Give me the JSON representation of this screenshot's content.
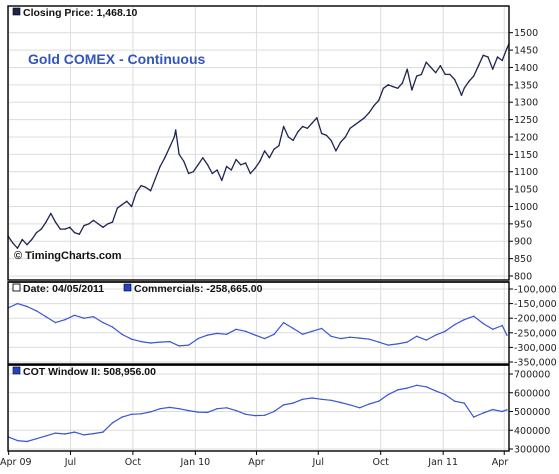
{
  "colors": {
    "price_line": "#1f2552",
    "indicator_line": "#3a55d6",
    "grid": "#dcdcdc",
    "frame": "#000000",
    "title": "#3355bb",
    "legend_dark": "#1f2552",
    "legend_blue": "#2244cc"
  },
  "chart_data": [
    {
      "type": "line",
      "panel": "price",
      "legend": "Closing Price: 1,468.10",
      "legend_icon": "filled-dark-square-icon",
      "title": "Gold COMEX - Continuous",
      "watermark": "© TimingCharts.com",
      "y_ticks": [
        "1500",
        "1450",
        "1400",
        "1350",
        "1300",
        "1250",
        "1200",
        "1150",
        "1100",
        "1050",
        "1000",
        "950",
        "900",
        "850",
        "800"
      ],
      "ylim": [
        800,
        1525
      ],
      "x_ticks": [
        "Apr 09",
        "Jul",
        "Oct",
        "Jan 10",
        "Apr",
        "Jul",
        "Oct",
        "Jan 11",
        "Apr"
      ],
      "x_tick_dates": [
        "2009-04-01",
        "2009-07-01",
        "2009-10-01",
        "2010-01-01",
        "2010-04-01",
        "2010-07-01",
        "2010-10-01",
        "2011-01-01",
        "2011-04-01"
      ],
      "xlim": [
        "2009-03-31",
        "2011-04-08"
      ],
      "grid": true,
      "series": [
        {
          "points": [
            [
              "2009-03-31",
              915
            ],
            [
              "2009-04-07",
              895
            ],
            [
              "2009-04-14",
              880
            ],
            [
              "2009-04-21",
              905
            ],
            [
              "2009-04-28",
              890
            ],
            [
              "2009-05-05",
              905
            ],
            [
              "2009-05-12",
              925
            ],
            [
              "2009-05-19",
              935
            ],
            [
              "2009-05-26",
              955
            ],
            [
              "2009-06-02",
              980
            ],
            [
              "2009-06-09",
              955
            ],
            [
              "2009-06-16",
              935
            ],
            [
              "2009-06-23",
              935
            ],
            [
              "2009-06-30",
              940
            ],
            [
              "2009-07-07",
              925
            ],
            [
              "2009-07-14",
              920
            ],
            [
              "2009-07-21",
              945
            ],
            [
              "2009-07-28",
              950
            ],
            [
              "2009-08-04",
              960
            ],
            [
              "2009-08-11",
              950
            ],
            [
              "2009-08-18",
              940
            ],
            [
              "2009-08-25",
              950
            ],
            [
              "2009-09-01",
              955
            ],
            [
              "2009-09-08",
              995
            ],
            [
              "2009-09-15",
              1005
            ],
            [
              "2009-09-22",
              1015
            ],
            [
              "2009-09-29",
              1000
            ],
            [
              "2009-10-06",
              1040
            ],
            [
              "2009-10-13",
              1060
            ],
            [
              "2009-10-20",
              1055
            ],
            [
              "2009-10-27",
              1045
            ],
            [
              "2009-11-03",
              1080
            ],
            [
              "2009-11-10",
              1115
            ],
            [
              "2009-11-17",
              1140
            ],
            [
              "2009-11-24",
              1170
            ],
            [
              "2009-12-01",
              1200
            ],
            [
              "2009-12-03",
              1220
            ],
            [
              "2009-12-08",
              1150
            ],
            [
              "2009-12-15",
              1130
            ],
            [
              "2009-12-22",
              1095
            ],
            [
              "2009-12-29",
              1100
            ],
            [
              "2010-01-05",
              1120
            ],
            [
              "2010-01-12",
              1140
            ],
            [
              "2010-01-19",
              1120
            ],
            [
              "2010-01-26",
              1095
            ],
            [
              "2010-02-02",
              1105
            ],
            [
              "2010-02-09",
              1075
            ],
            [
              "2010-02-16",
              1115
            ],
            [
              "2010-02-23",
              1105
            ],
            [
              "2010-03-02",
              1135
            ],
            [
              "2010-03-09",
              1120
            ],
            [
              "2010-03-16",
              1125
            ],
            [
              "2010-03-23",
              1095
            ],
            [
              "2010-03-30",
              1110
            ],
            [
              "2010-04-06",
              1130
            ],
            [
              "2010-04-13",
              1160
            ],
            [
              "2010-04-20",
              1140
            ],
            [
              "2010-04-27",
              1165
            ],
            [
              "2010-05-04",
              1175
            ],
            [
              "2010-05-11",
              1230
            ],
            [
              "2010-05-18",
              1200
            ],
            [
              "2010-05-25",
              1190
            ],
            [
              "2010-06-01",
              1215
            ],
            [
              "2010-06-08",
              1230
            ],
            [
              "2010-06-15",
              1225
            ],
            [
              "2010-06-22",
              1240
            ],
            [
              "2010-06-29",
              1255
            ],
            [
              "2010-07-06",
              1210
            ],
            [
              "2010-07-13",
              1205
            ],
            [
              "2010-07-20",
              1190
            ],
            [
              "2010-07-27",
              1160
            ],
            [
              "2010-08-03",
              1185
            ],
            [
              "2010-08-10",
              1200
            ],
            [
              "2010-08-17",
              1225
            ],
            [
              "2010-08-24",
              1235
            ],
            [
              "2010-08-31",
              1245
            ],
            [
              "2010-09-07",
              1255
            ],
            [
              "2010-09-14",
              1270
            ],
            [
              "2010-09-21",
              1290
            ],
            [
              "2010-09-28",
              1305
            ],
            [
              "2010-10-05",
              1340
            ],
            [
              "2010-10-12",
              1350
            ],
            [
              "2010-10-19",
              1345
            ],
            [
              "2010-10-26",
              1340
            ],
            [
              "2010-11-02",
              1355
            ],
            [
              "2010-11-09",
              1395
            ],
            [
              "2010-11-16",
              1335
            ],
            [
              "2010-11-23",
              1375
            ],
            [
              "2010-11-30",
              1380
            ],
            [
              "2010-12-07",
              1415
            ],
            [
              "2010-12-14",
              1400
            ],
            [
              "2010-12-21",
              1385
            ],
            [
              "2010-12-28",
              1405
            ],
            [
              "2011-01-04",
              1380
            ],
            [
              "2011-01-11",
              1380
            ],
            [
              "2011-01-18",
              1365
            ],
            [
              "2011-01-25",
              1335
            ],
            [
              "2011-01-28",
              1320
            ],
            [
              "2011-02-01",
              1340
            ],
            [
              "2011-02-08",
              1360
            ],
            [
              "2011-02-15",
              1375
            ],
            [
              "2011-02-22",
              1405
            ],
            [
              "2011-03-01",
              1435
            ],
            [
              "2011-03-08",
              1430
            ],
            [
              "2011-03-15",
              1395
            ],
            [
              "2011-03-22",
              1430
            ],
            [
              "2011-03-29",
              1420
            ],
            [
              "2011-04-05",
              1455
            ],
            [
              "2011-04-08",
              1468
            ]
          ]
        }
      ]
    },
    {
      "type": "line",
      "panel": "commercials",
      "legend": [
        {
          "icon": "hollow-square-icon",
          "text": "Date: 04/05/2011"
        },
        {
          "icon": "filled-blue-square-icon",
          "text": "Commercials: -258,665.00"
        }
      ],
      "y_ticks": [
        "-100,000",
        "-150,000",
        "-200,000",
        "-250,000",
        "-300,000",
        "-350,000"
      ],
      "ylim": [
        -350000,
        -100000
      ],
      "grid": true,
      "series": [
        {
          "name": "Commercials",
          "points": [
            [
              "2009-03-31",
              -165000
            ],
            [
              "2009-04-14",
              -150000
            ],
            [
              "2009-04-28",
              -160000
            ],
            [
              "2009-05-12",
              -175000
            ],
            [
              "2009-05-26",
              -195000
            ],
            [
              "2009-06-09",
              -215000
            ],
            [
              "2009-06-23",
              -205000
            ],
            [
              "2009-07-07",
              -190000
            ],
            [
              "2009-07-21",
              -200000
            ],
            [
              "2009-08-04",
              -195000
            ],
            [
              "2009-08-18",
              -215000
            ],
            [
              "2009-09-01",
              -230000
            ],
            [
              "2009-09-15",
              -255000
            ],
            [
              "2009-09-29",
              -272000
            ],
            [
              "2009-10-13",
              -280000
            ],
            [
              "2009-10-27",
              -285000
            ],
            [
              "2009-11-10",
              -282000
            ],
            [
              "2009-11-24",
              -280000
            ],
            [
              "2009-12-08",
              -295000
            ],
            [
              "2009-12-22",
              -292000
            ],
            [
              "2010-01-05",
              -270000
            ],
            [
              "2010-01-19",
              -258000
            ],
            [
              "2010-02-02",
              -252000
            ],
            [
              "2010-02-16",
              -255000
            ],
            [
              "2010-03-02",
              -238000
            ],
            [
              "2010-03-16",
              -245000
            ],
            [
              "2010-03-30",
              -258000
            ],
            [
              "2010-04-13",
              -270000
            ],
            [
              "2010-04-27",
              -255000
            ],
            [
              "2010-05-11",
              -215000
            ],
            [
              "2010-05-25",
              -235000
            ],
            [
              "2010-06-08",
              -255000
            ],
            [
              "2010-06-22",
              -245000
            ],
            [
              "2010-07-06",
              -235000
            ],
            [
              "2010-07-20",
              -262000
            ],
            [
              "2010-08-03",
              -270000
            ],
            [
              "2010-08-17",
              -265000
            ],
            [
              "2010-08-31",
              -268000
            ],
            [
              "2010-09-14",
              -272000
            ],
            [
              "2010-09-28",
              -282000
            ],
            [
              "2010-10-12",
              -292000
            ],
            [
              "2010-10-26",
              -288000
            ],
            [
              "2010-11-09",
              -282000
            ],
            [
              "2010-11-23",
              -262000
            ],
            [
              "2010-12-07",
              -275000
            ],
            [
              "2010-12-21",
              -258000
            ],
            [
              "2011-01-04",
              -245000
            ],
            [
              "2011-01-18",
              -222000
            ],
            [
              "2011-02-01",
              -205000
            ],
            [
              "2011-02-15",
              -193000
            ],
            [
              "2011-03-01",
              -218000
            ],
            [
              "2011-03-15",
              -238000
            ],
            [
              "2011-03-29",
              -225000
            ],
            [
              "2011-04-05",
              -258665
            ]
          ]
        }
      ]
    },
    {
      "type": "line",
      "panel": "cot_window",
      "legend": [
        {
          "icon": "filled-blue-square-icon",
          "text": "COT Window II: 508,956.00"
        }
      ],
      "y_ticks": [
        "700000",
        "600000",
        "500000",
        "400000",
        "300000"
      ],
      "ylim": [
        300000,
        700000
      ],
      "grid": true,
      "series": [
        {
          "name": "COT Window II",
          "points": [
            [
              "2009-03-31",
              365000
            ],
            [
              "2009-04-14",
              345000
            ],
            [
              "2009-04-28",
              340000
            ],
            [
              "2009-05-12",
              355000
            ],
            [
              "2009-05-26",
              370000
            ],
            [
              "2009-06-09",
              385000
            ],
            [
              "2009-06-23",
              380000
            ],
            [
              "2009-07-07",
              390000
            ],
            [
              "2009-07-21",
              375000
            ],
            [
              "2009-08-04",
              382000
            ],
            [
              "2009-08-18",
              390000
            ],
            [
              "2009-09-01",
              440000
            ],
            [
              "2009-09-15",
              470000
            ],
            [
              "2009-09-29",
              485000
            ],
            [
              "2009-10-13",
              488000
            ],
            [
              "2009-10-27",
              498000
            ],
            [
              "2009-11-10",
              515000
            ],
            [
              "2009-11-24",
              522000
            ],
            [
              "2009-12-08",
              515000
            ],
            [
              "2009-12-22",
              505000
            ],
            [
              "2010-01-05",
              497000
            ],
            [
              "2010-01-19",
              495000
            ],
            [
              "2010-02-02",
              515000
            ],
            [
              "2010-02-16",
              520000
            ],
            [
              "2010-03-02",
              505000
            ],
            [
              "2010-03-16",
              485000
            ],
            [
              "2010-03-30",
              478000
            ],
            [
              "2010-04-13",
              480000
            ],
            [
              "2010-04-27",
              500000
            ],
            [
              "2010-05-11",
              535000
            ],
            [
              "2010-05-25",
              545000
            ],
            [
              "2010-06-08",
              565000
            ],
            [
              "2010-06-22",
              572000
            ],
            [
              "2010-07-06",
              565000
            ],
            [
              "2010-07-20",
              560000
            ],
            [
              "2010-08-03",
              548000
            ],
            [
              "2010-08-17",
              535000
            ],
            [
              "2010-08-31",
              520000
            ],
            [
              "2010-09-14",
              540000
            ],
            [
              "2010-09-28",
              555000
            ],
            [
              "2010-10-12",
              590000
            ],
            [
              "2010-10-26",
              615000
            ],
            [
              "2010-11-09",
              625000
            ],
            [
              "2010-11-23",
              640000
            ],
            [
              "2010-12-07",
              632000
            ],
            [
              "2010-12-21",
              610000
            ],
            [
              "2011-01-04",
              590000
            ],
            [
              "2011-01-18",
              555000
            ],
            [
              "2011-02-01",
              545000
            ],
            [
              "2011-02-15",
              470000
            ],
            [
              "2011-03-01",
              492000
            ],
            [
              "2011-03-15",
              510000
            ],
            [
              "2011-03-29",
              500000
            ],
            [
              "2011-04-05",
              508956
            ]
          ]
        }
      ]
    }
  ]
}
